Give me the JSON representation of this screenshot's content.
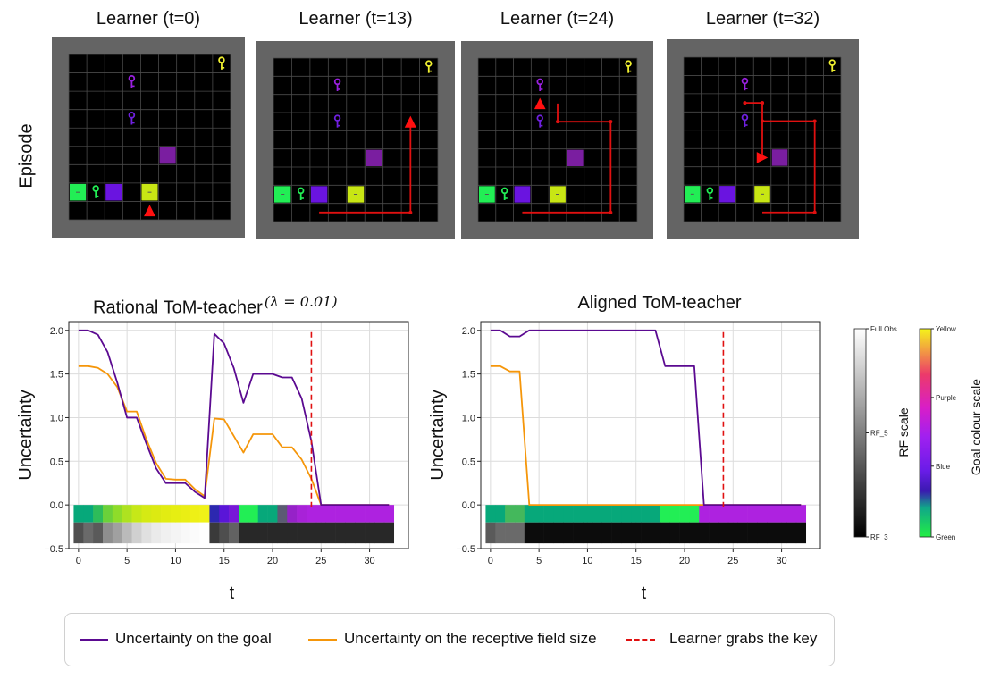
{
  "episode": {
    "ylabel": "Episode",
    "panels": [
      {
        "title": "Learner (t=0)"
      },
      {
        "title": "Learner (t=13)"
      },
      {
        "title": "Learner (t=24)"
      },
      {
        "title": "Learner (t=32)"
      }
    ]
  },
  "colors": {
    "goal": "#5b0a91",
    "rf": "#f5960a",
    "key_line": "#e01010",
    "green": "#22ee55",
    "purple": "#7a1ea0",
    "blue": "#6a14e0",
    "yellow_green": "#c8e614",
    "yellow": "#f0f030"
  },
  "chart_data": [
    {
      "type": "line",
      "title": "Rational ToM-teacher",
      "title_suffix": "(λ = 0.01)",
      "xlabel": "t",
      "ylabel": "Uncertainty",
      "xlim": [
        -1,
        34
      ],
      "ylim": [
        -0.5,
        2.1
      ],
      "xticks": [
        0,
        5,
        10,
        15,
        20,
        25,
        30
      ],
      "yticks": [
        -0.5,
        0.0,
        0.5,
        1.0,
        1.5,
        2.0
      ],
      "ytick_labels": [
        "−0.5",
        "0.0",
        "0.5",
        "1.0",
        "1.5",
        "2.0"
      ],
      "grid": true,
      "series": [
        {
          "name": "Uncertainty on the goal",
          "color": "#5b0a91",
          "x": [
            0,
            1,
            2,
            3,
            4,
            5,
            6,
            7,
            8,
            9,
            10,
            11,
            12,
            13,
            14,
            15,
            16,
            17,
            18,
            19,
            20,
            21,
            22,
            23,
            24,
            25,
            26,
            27,
            28,
            29,
            30,
            31,
            32
          ],
          "y": [
            2.0,
            2.0,
            1.95,
            1.75,
            1.4,
            1.0,
            1.0,
            0.7,
            0.42,
            0.25,
            0.25,
            0.25,
            0.15,
            0.08,
            1.96,
            1.85,
            1.57,
            1.17,
            1.5,
            1.5,
            1.5,
            1.46,
            1.46,
            1.22,
            0.73,
            0.0,
            0.0,
            0.0,
            0.0,
            0.0,
            0.0,
            0.0,
            0.0
          ]
        },
        {
          "name": "Uncertainty on the receptive field size",
          "color": "#f5960a",
          "x": [
            0,
            1,
            2,
            3,
            4,
            5,
            6,
            7,
            8,
            9,
            10,
            11,
            12,
            13,
            14,
            15,
            16,
            17,
            18,
            19,
            20,
            21,
            22,
            23,
            24,
            25,
            26,
            27,
            28,
            29,
            30,
            31,
            32
          ],
          "y": [
            1.59,
            1.59,
            1.57,
            1.5,
            1.35,
            1.07,
            1.07,
            0.75,
            0.48,
            0.3,
            0.29,
            0.29,
            0.18,
            0.1,
            0.99,
            0.98,
            0.79,
            0.6,
            0.81,
            0.81,
            0.81,
            0.66,
            0.66,
            0.52,
            0.3,
            0.0,
            0.0,
            0.0,
            0.0,
            0.0,
            0.0,
            0.0,
            0.0
          ]
        }
      ],
      "vline": {
        "name": "Learner grabs the key",
        "x": 24,
        "color": "#e01010"
      },
      "goal_strip": [
        "#07a87a",
        "#07a87a",
        "#2ebc5a",
        "#6bd13a",
        "#8edc2a",
        "#aee220",
        "#c6e818",
        "#d5ea14",
        "#dcea12",
        "#e2ec12",
        "#e6ee12",
        "#eaee14",
        "#eef016",
        "#f0f218",
        "#2c28b0",
        "#5a16d8",
        "#7818d8",
        "#22ee55",
        "#22ee55",
        "#07a87a",
        "#07a87a",
        "#5b5b73",
        "#9622c8",
        "#a822d8",
        "#ae22e0",
        "#ae22e0",
        "#ae22e0",
        "#ae22e0",
        "#ae22e0",
        "#ae22e0",
        "#ae22e0",
        "#ae22e0",
        "#ae22e0"
      ],
      "rf_strip": [
        "#505050",
        "#6a6a6a",
        "#5a5a5a",
        "#8e8e8e",
        "#a0a0a0",
        "#bababa",
        "#d0d0d0",
        "#e0e0e0",
        "#eaeaea",
        "#f0f0f0",
        "#f4f4f4",
        "#f8f8f8",
        "#fbfbfb",
        "#ffffff",
        "#3a3a3a",
        "#4e4e4e",
        "#626262",
        "#282828",
        "#282828",
        "#282828",
        "#282828",
        "#282828",
        "#282828",
        "#282828",
        "#282828",
        "#282828",
        "#282828",
        "#282828",
        "#282828",
        "#282828",
        "#282828",
        "#282828",
        "#282828"
      ]
    },
    {
      "type": "line",
      "title": "Aligned ToM-teacher",
      "xlabel": "t",
      "ylabel": "Uncertainty",
      "xlim": [
        -1,
        34
      ],
      "ylim": [
        -0.5,
        2.1
      ],
      "xticks": [
        0,
        5,
        10,
        15,
        20,
        25,
        30
      ],
      "yticks": [
        -0.5,
        0.0,
        0.5,
        1.0,
        1.5,
        2.0
      ],
      "ytick_labels": [
        "−0.5",
        "0.0",
        "0.5",
        "1.0",
        "1.5",
        "2.0"
      ],
      "grid": true,
      "series": [
        {
          "name": "Uncertainty on the goal",
          "color": "#5b0a91",
          "x": [
            0,
            1,
            2,
            3,
            4,
            5,
            6,
            7,
            8,
            9,
            10,
            11,
            12,
            13,
            14,
            15,
            16,
            17,
            18,
            19,
            20,
            21,
            22,
            23,
            24,
            25,
            26,
            27,
            28,
            29,
            30,
            31,
            32
          ],
          "y": [
            2.0,
            2.0,
            1.93,
            1.93,
            2.0,
            2.0,
            2.0,
            2.0,
            2.0,
            2.0,
            2.0,
            2.0,
            2.0,
            2.0,
            2.0,
            2.0,
            2.0,
            2.0,
            1.59,
            1.59,
            1.59,
            1.59,
            0.0,
            0.0,
            0.0,
            0.0,
            0.0,
            0.0,
            0.0,
            0.0,
            0.0,
            0.0,
            0.0
          ]
        },
        {
          "name": "Uncertainty on the receptive field size",
          "color": "#f5960a",
          "x": [
            0,
            1,
            2,
            3,
            4,
            5,
            6,
            7,
            8,
            9,
            10,
            11,
            12,
            13,
            14,
            15,
            16,
            17,
            18,
            19,
            20,
            21,
            22,
            23,
            24,
            25,
            26,
            27,
            28,
            29,
            30,
            31,
            32
          ],
          "y": [
            1.59,
            1.59,
            1.53,
            1.53,
            0.0,
            0.0,
            0.0,
            0.0,
            0.0,
            0.0,
            0.0,
            0.0,
            0.0,
            0.0,
            0.0,
            0.0,
            0.0,
            0.0,
            0.0,
            0.0,
            0.0,
            0.0,
            0.0,
            0.0,
            0.0,
            0.0,
            0.0,
            0.0,
            0.0,
            0.0,
            0.0,
            0.0,
            0.0
          ]
        }
      ],
      "vline": {
        "name": "Learner grabs the key",
        "x": 24,
        "color": "#e01010"
      },
      "goal_strip": [
        "#07a87a",
        "#07a87a",
        "#44b85c",
        "#44b85c",
        "#07a87a",
        "#07a87a",
        "#07a87a",
        "#07a87a",
        "#07a87a",
        "#07a87a",
        "#07a87a",
        "#07a87a",
        "#07a87a",
        "#07a87a",
        "#07a87a",
        "#07a87a",
        "#07a87a",
        "#07a87a",
        "#22ee55",
        "#22ee55",
        "#22ee55",
        "#22ee55",
        "#ae22e0",
        "#ae22e0",
        "#ae22e0",
        "#ae22e0",
        "#ae22e0",
        "#ae22e0",
        "#ae22e0",
        "#ae22e0",
        "#ae22e0",
        "#ae22e0",
        "#ae22e0"
      ],
      "rf_strip": [
        "#5a5a5a",
        "#6a6a6a",
        "#6a6a6a",
        "#6a6a6a",
        "#0c0c0c",
        "#0c0c0c",
        "#0c0c0c",
        "#0c0c0c",
        "#0c0c0c",
        "#0c0c0c",
        "#0c0c0c",
        "#0c0c0c",
        "#0c0c0c",
        "#0c0c0c",
        "#0c0c0c",
        "#0c0c0c",
        "#0c0c0c",
        "#0c0c0c",
        "#0c0c0c",
        "#0c0c0c",
        "#0c0c0c",
        "#0c0c0c",
        "#0c0c0c",
        "#0c0c0c",
        "#0c0c0c",
        "#0c0c0c",
        "#0c0c0c",
        "#0c0c0c",
        "#0c0c0c",
        "#0c0c0c",
        "#0c0c0c",
        "#0c0c0c",
        "#0c0c0c"
      ]
    }
  ],
  "colorbars": {
    "rf": {
      "label": "RF scale",
      "ticks": [
        "Full Obs",
        "RF_5",
        "RF_3"
      ]
    },
    "goal": {
      "label": "Goal colour scale",
      "ticks": [
        "Yellow",
        "Purple",
        "Blue",
        "Green"
      ]
    }
  },
  "legend": [
    {
      "label": "Uncertainty on the goal",
      "color": "#5b0a91",
      "style": "solid"
    },
    {
      "label": "Uncertainty on the receptive field size",
      "color": "#f5960a",
      "style": "solid"
    },
    {
      "label": "Learner grabs the key",
      "color": "#e01010",
      "style": "dashed"
    }
  ]
}
